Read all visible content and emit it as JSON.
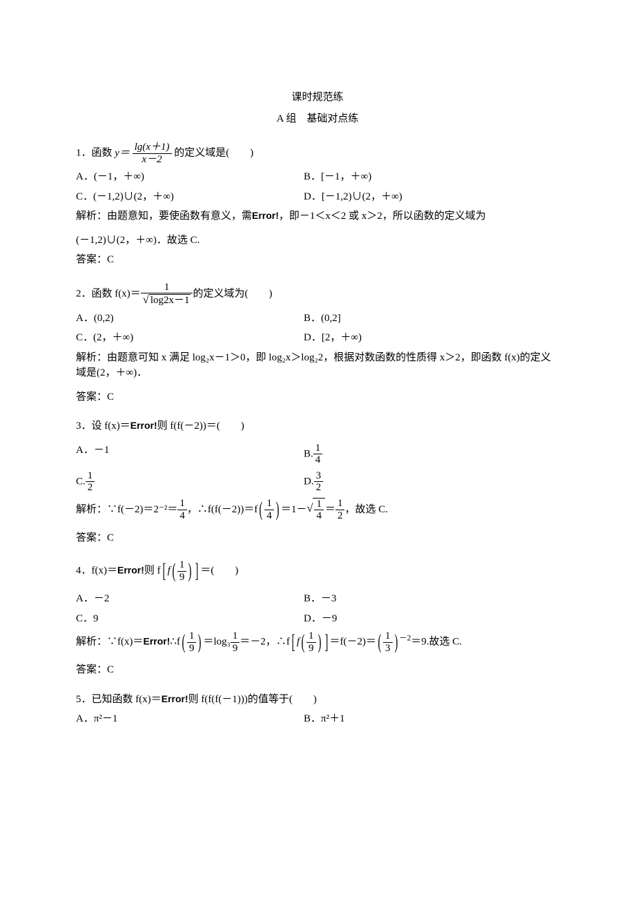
{
  "title": "课时规范练",
  "subtitle": "A 组　基础对点练",
  "q1": {
    "stem_a": "1．函数 ",
    "stem_b": " 的定义域是(　　)",
    "frac_num": "lg(x＋1)",
    "frac_den": "x－2",
    "y_eq": "y＝",
    "A": "A．(－1，＋∞)",
    "B": "B．[－1，＋∞)",
    "C": "C．(－1,2)∪(2，＋∞)",
    "D": "D．[－1,2)∪(2，＋∞)",
    "ana1": "解析：由题意知，要使函数有意义，需",
    "ana2": "，即－1＜x＜2 或 x＞2，所以函数的定义域为",
    "ana3": "(－1,2)∪(2，＋∞)．故选 C.",
    "err": "Error!",
    "ans": "答案：C"
  },
  "q2": {
    "stem_a": "2．函数 f(x)＝",
    "stem_b": "的定义域为(　　)",
    "one": "1",
    "rad": "log2x－1",
    "A": "A．(0,2)",
    "B": "B．(0,2]",
    "C": "C．(2，＋∞)",
    "D": "D．[2，＋∞)",
    "ana": "解析：由题意可知 x 满足 log₂x－1＞0，即 log₂x＞log₂2，根据对数函数的性质得 x＞2，即函数 f(x)的定义域是(2，＋∞)．",
    "ans": "答案：C"
  },
  "q3": {
    "stem_a": "3．设 f(x)＝",
    "stem_b": "则 f(f(－2))＝(　　)",
    "err": "Error!",
    "A": "A．－1",
    "B_pref": "B.",
    "B_num": "1",
    "B_den": "4",
    "C_pref": "C.",
    "C_num": "1",
    "C_den": "2",
    "D_pref": "D.",
    "D_num": "3",
    "D_den": "2",
    "ana_1": "解析：∵f(－2)＝2⁻²＝",
    "ana_2": "，∴f(f(－2))＝f",
    "ana_3": "＝1－",
    "ana_4": "＝",
    "ana_5": "，故选 C.",
    "f14_num": "1",
    "f14_den": "4",
    "f12_num": "1",
    "f12_den": "2",
    "ans": "答案：C"
  },
  "q4": {
    "stem_a": "4．f(x)＝",
    "stem_b": "则 f",
    "stem_c": "＝(　　)",
    "err": "Error!",
    "f19_num": "1",
    "f19_den": "9",
    "A": "A．－2",
    "B": "B．－3",
    "C": "C．9",
    "D": "D．－9",
    "ana_1": "解析：∵f(x)＝",
    "ana_2": "∴f",
    "ana_3": "＝log₃",
    "ana_4": "＝－2，∴f",
    "ana_5": "＝f(－2)＝",
    "ana_6": "＝9.故选 C.",
    "f13_num": "1",
    "f13_den": "3",
    "neg2": "－2",
    "ans": "答案：C"
  },
  "q5": {
    "stem_a": "5．已知函数 f(x)＝",
    "stem_b": "则 f(f(f(－1)))的值等于(　　)",
    "err": "Error!",
    "A": "A．π²－1",
    "B": "B．π²＋1"
  },
  "colors": {
    "text": "#000000",
    "background": "#ffffff"
  }
}
